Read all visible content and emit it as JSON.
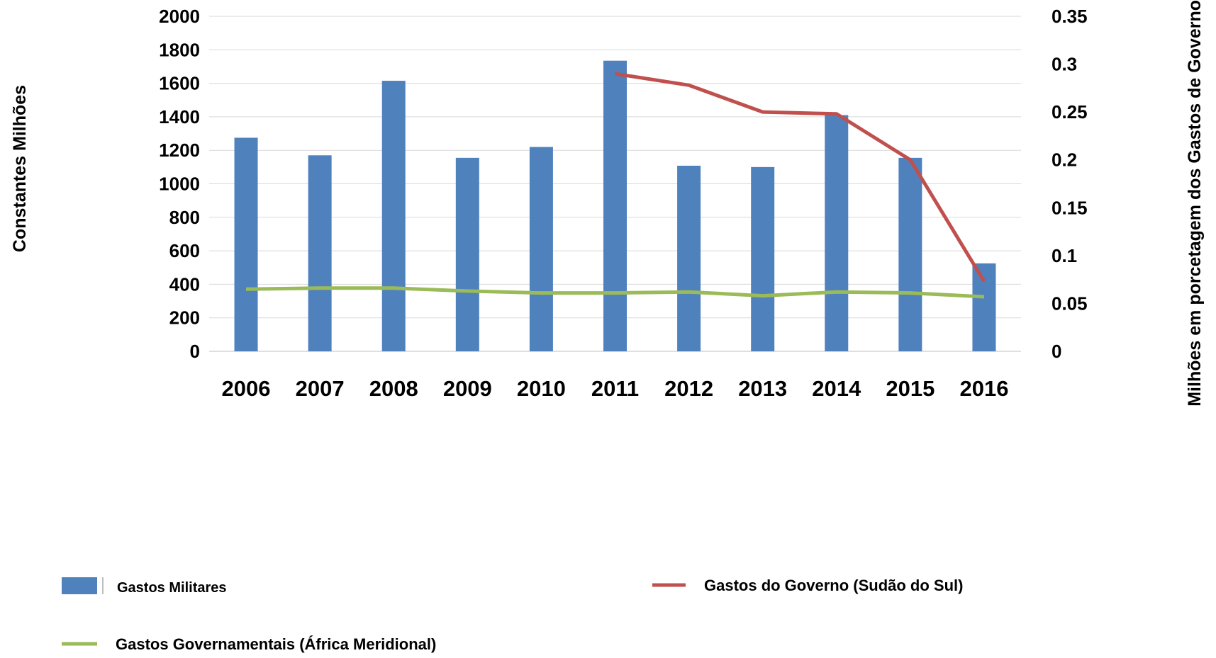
{
  "chart_data": {
    "type": "bar",
    "categories": [
      "2006",
      "2007",
      "2008",
      "2009",
      "2010",
      "2011",
      "2012",
      "2013",
      "2014",
      "2015",
      "2016"
    ],
    "ylabel": "Constantes Milhões",
    "y2label": "Milhões em porcetagem dos Gastos de Governo",
    "ylim": [
      0,
      2000
    ],
    "y2lim": [
      0,
      0.35
    ],
    "yticks": [
      "0",
      "200",
      "400",
      "600",
      "800",
      "1000",
      "1200",
      "1400",
      "1600",
      "1800",
      "2000"
    ],
    "y2ticks": [
      "0",
      "0.05",
      "0.1",
      "0.15",
      "0.2",
      "0.25",
      "0.3",
      "0.35"
    ],
    "grid": true,
    "legend_position": "bottom",
    "series": [
      {
        "name": "Gastos Militares",
        "type": "bar",
        "axis": "left",
        "color": "#4F81BD",
        "values": [
          1275,
          1170,
          1615,
          1155,
          1220,
          1735,
          1108,
          1100,
          1410,
          1155,
          525
        ]
      },
      {
        "name": "Gastos do Governo (Sudão do Sul)",
        "type": "line",
        "axis": "right",
        "color": "#C0504D",
        "values": [
          null,
          null,
          null,
          null,
          null,
          0.29,
          0.278,
          0.25,
          0.248,
          0.2,
          0.073
        ]
      },
      {
        "name": "Gastos Governamentais (África Meridional)",
        "type": "line",
        "axis": "right",
        "color": "#9BBB59",
        "values": [
          0.065,
          0.066,
          0.066,
          0.063,
          0.061,
          0.061,
          0.062,
          0.058,
          0.062,
          0.061,
          0.057
        ]
      }
    ]
  }
}
